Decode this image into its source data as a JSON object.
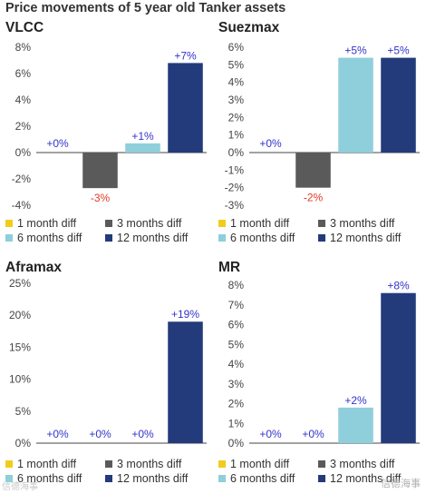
{
  "title": "Price movements of 5 year old Tanker assets",
  "colors": {
    "1 month diff": "#f2cc1d",
    "3 months diff": "#5a5a5a",
    "6 months diff": "#8ecfdb",
    "12 months diff": "#233b7b",
    "positive_label": "#3333cc",
    "negative_label": "#e23a2a",
    "zero_line": "#444444",
    "axis_text": "#444444"
  },
  "watermark": "信德海事",
  "watermark_left": "信德海事",
  "chart_data": [
    {
      "type": "bar",
      "title": "VLCC",
      "categories": [
        "1 month diff",
        "3 months diff",
        "6 months diff",
        "12 months diff"
      ],
      "values": [
        0,
        -2.7,
        0.7,
        6.8
      ],
      "data_labels": [
        "+0%",
        "-3%",
        "+1%",
        "+7%"
      ],
      "ylim": [
        -4,
        8
      ],
      "yticks": [
        -4,
        -2,
        0,
        2,
        4,
        6,
        8
      ],
      "ytick_labels": [
        "-4%",
        "-2%",
        "0%",
        "2%",
        "4%",
        "6%",
        "8%"
      ],
      "legend": [
        "1 month diff",
        "3 months diff",
        "6 months diff",
        "12 months diff"
      ],
      "grid": false
    },
    {
      "type": "bar",
      "title": "Suezmax",
      "categories": [
        "1 month diff",
        "3 months diff",
        "6 months diff",
        "12 months diff"
      ],
      "values": [
        0,
        -2.0,
        5.4,
        5.4
      ],
      "data_labels": [
        "+0%",
        "-2%",
        "+5%",
        "+5%"
      ],
      "ylim": [
        -3,
        6
      ],
      "yticks": [
        -3,
        -2,
        -1,
        0,
        1,
        2,
        3,
        4,
        5,
        6
      ],
      "ytick_labels": [
        "-3%",
        "-2%",
        "-1%",
        "0%",
        "1%",
        "2%",
        "3%",
        "4%",
        "5%",
        "6%"
      ],
      "legend": [
        "1 month diff",
        "3 months diff",
        "6 months diff",
        "12 months diff"
      ],
      "grid": false
    },
    {
      "type": "bar",
      "title": "Aframax",
      "categories": [
        "1 month diff",
        "3 months diff",
        "6 months diff",
        "12 months diff"
      ],
      "values": [
        0,
        0,
        0,
        19
      ],
      "data_labels": [
        "+0%",
        "+0%",
        "+0%",
        "+19%"
      ],
      "ylim": [
        0,
        25
      ],
      "yticks": [
        0,
        5,
        10,
        15,
        20,
        25
      ],
      "ytick_labels": [
        "0%",
        "5%",
        "10%",
        "15%",
        "20%",
        "25%"
      ],
      "legend": [
        "1 month diff",
        "3 months diff",
        "6 months diff",
        "12 months diff"
      ],
      "grid": false
    },
    {
      "type": "bar",
      "title": "MR",
      "categories": [
        "1 month diff",
        "3 months diff",
        "6 months diff",
        "12 months diff"
      ],
      "values": [
        0,
        0,
        1.8,
        7.6
      ],
      "data_labels": [
        "+0%",
        "+0%",
        "+2%",
        "+8%"
      ],
      "ylim": [
        0,
        8
      ],
      "yticks": [
        0,
        1,
        2,
        3,
        4,
        5,
        6,
        7,
        8
      ],
      "ytick_labels": [
        "0%",
        "1%",
        "2%",
        "3%",
        "4%",
        "5%",
        "6%",
        "7%",
        "8%"
      ],
      "legend": [
        "1 month diff",
        "3 months diff",
        "6 months diff",
        "12 months diff"
      ],
      "grid": false
    }
  ]
}
